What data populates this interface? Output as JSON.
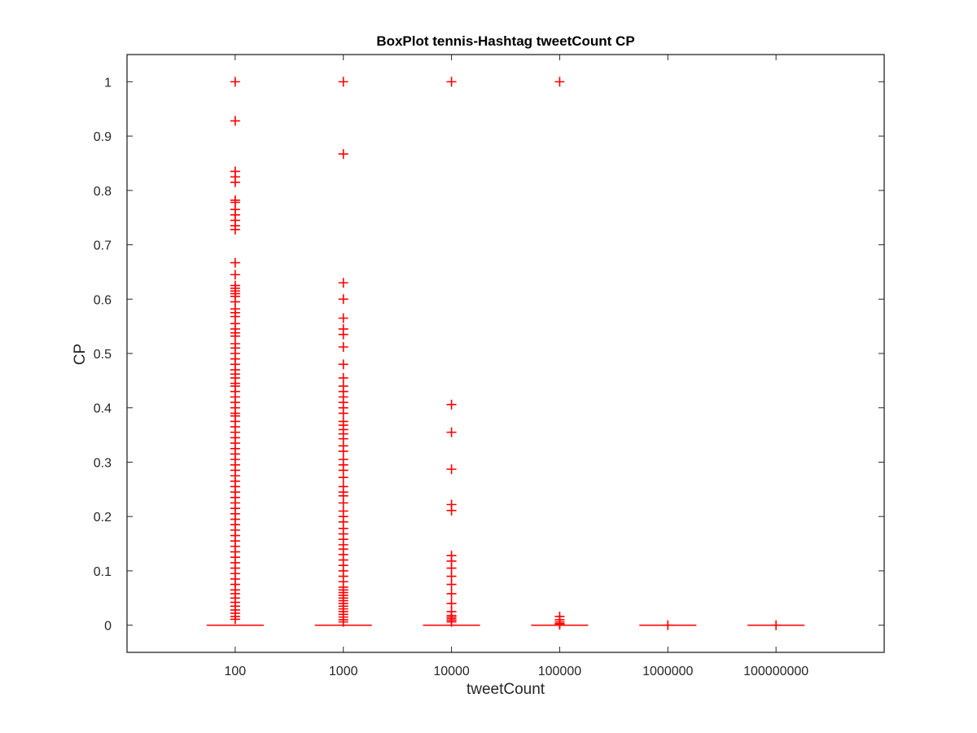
{
  "chart_data": {
    "type": "box",
    "title": "BoxPlot tennis-Hashtag tweetCount CP",
    "xlabel": "tweetCount",
    "ylabel": "CP",
    "categories": [
      "100",
      "1000",
      "10000",
      "100000",
      "1000000",
      "100000000"
    ],
    "ylim": [
      -0.05,
      1.05
    ],
    "yticks": [
      0,
      0.1,
      0.2,
      0.3,
      0.4,
      0.5,
      0.6,
      0.7,
      0.8,
      0.9,
      1
    ],
    "ytick_labels": [
      "0",
      "0.1",
      "0.2",
      "0.3",
      "0.4",
      "0.5",
      "0.6",
      "0.7",
      "0.8",
      "0.9",
      "1"
    ],
    "grid": false,
    "color": "#ff0000",
    "boxes": [
      {
        "category": "100",
        "median": 0,
        "q1": 0,
        "q3": 0,
        "whisker_low": 0,
        "whisker_high": 0,
        "outliers": [
          1,
          0.928,
          0.835,
          0.825,
          0.815,
          0.782,
          0.778,
          0.765,
          0.755,
          0.745,
          0.735,
          0.728,
          0.667,
          0.645,
          0.625,
          0.62,
          0.615,
          0.61,
          0.605,
          0.595,
          0.582,
          0.575,
          0.568,
          0.555,
          0.545,
          0.538,
          0.532,
          0.518,
          0.51,
          0.5,
          0.49,
          0.48,
          0.47,
          0.462,
          0.455,
          0.445,
          0.44,
          0.43,
          0.42,
          0.41,
          0.4,
          0.39,
          0.385,
          0.375,
          0.365,
          0.355,
          0.345,
          0.335,
          0.325,
          0.315,
          0.305,
          0.295,
          0.285,
          0.275,
          0.265,
          0.255,
          0.245,
          0.235,
          0.225,
          0.215,
          0.205,
          0.195,
          0.185,
          0.175,
          0.165,
          0.155,
          0.145,
          0.135,
          0.125,
          0.115,
          0.105,
          0.095,
          0.085,
          0.075,
          0.065,
          0.058,
          0.05,
          0.042,
          0.035,
          0.028,
          0.022,
          0.016,
          0.011
        ]
      },
      {
        "category": "1000",
        "median": 0,
        "q1": 0,
        "q3": 0,
        "whisker_low": 0,
        "whisker_high": 0,
        "outliers": [
          1,
          0.867,
          0.63,
          0.6,
          0.565,
          0.545,
          0.535,
          0.512,
          0.48,
          0.455,
          0.44,
          0.43,
          0.42,
          0.41,
          0.4,
          0.39,
          0.375,
          0.368,
          0.36,
          0.352,
          0.343,
          0.33,
          0.32,
          0.305,
          0.295,
          0.285,
          0.272,
          0.255,
          0.245,
          0.238,
          0.225,
          0.21,
          0.2,
          0.19,
          0.178,
          0.168,
          0.158,
          0.148,
          0.14,
          0.13,
          0.12,
          0.11,
          0.1,
          0.09,
          0.08,
          0.07,
          0.065,
          0.06,
          0.055,
          0.05,
          0.045,
          0.04,
          0.035,
          0.03,
          0.025,
          0.02,
          0.015,
          0.01,
          0.006
        ]
      },
      {
        "category": "10000",
        "median": 0,
        "q1": 0,
        "q3": 0,
        "whisker_low": 0,
        "whisker_high": 0,
        "outliers": [
          1,
          0.406,
          0.355,
          0.287,
          0.222,
          0.211,
          0.128,
          0.118,
          0.105,
          0.09,
          0.075,
          0.058,
          0.04,
          0.025,
          0.018,
          0.015,
          0.012,
          0.009,
          0.006
        ]
      },
      {
        "category": "100000",
        "median": 0,
        "q1": 0,
        "q3": 0,
        "whisker_low": 0,
        "whisker_high": 0,
        "outliers": [
          1,
          0.016,
          0.01,
          0.006,
          0.003,
          0.001
        ]
      },
      {
        "category": "1000000",
        "median": 0,
        "q1": 0,
        "q3": 0,
        "whisker_low": 0,
        "whisker_high": 0,
        "outliers": [
          0
        ]
      },
      {
        "category": "100000000",
        "median": 0,
        "q1": 0,
        "q3": 0,
        "whisker_low": 0,
        "whisker_high": 0,
        "outliers": [
          0
        ]
      }
    ]
  }
}
